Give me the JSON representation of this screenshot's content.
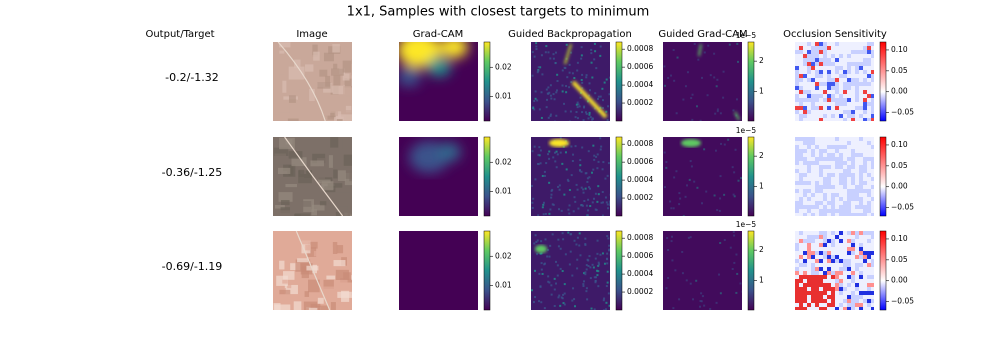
{
  "title": "1x1, Samples with closest targets to minimum",
  "columns": [
    "Output/Target",
    "Image",
    "Grad-CAM",
    "Guided Backpropagation",
    "Guided Grad-CAM",
    "Occlusion Sensitivity"
  ],
  "rows": [
    "-0.2/-1.32",
    "-0.36/-1.25",
    "-0.69/-1.19"
  ],
  "colorbars": [
    {
      "colormap": "viridis",
      "lim": [
        0.0017,
        0.0286
      ],
      "ticks": [
        0.01,
        0.02
      ]
    },
    {
      "colormap": "viridis",
      "lim": [
        0,
        0.00088
      ],
      "ticks": [
        0.0002,
        0.0004,
        0.0006,
        0.0008
      ]
    },
    {
      "colormap": "viridis",
      "lim": [
        0.03,
        2.63
      ],
      "ticks": [
        1,
        2
      ],
      "offset_label": "1e−5"
    },
    {
      "colormap": "bwr",
      "lim": [
        -0.07,
        0.119
      ],
      "ticks": [
        {
          "value": -0.05,
          "label": "−0.05"
        },
        {
          "value": 0,
          "label": "0.00"
        },
        {
          "value": 0.05,
          "label": "0.05"
        },
        {
          "value": 0.1,
          "label": "0.10"
        }
      ]
    }
  ]
}
